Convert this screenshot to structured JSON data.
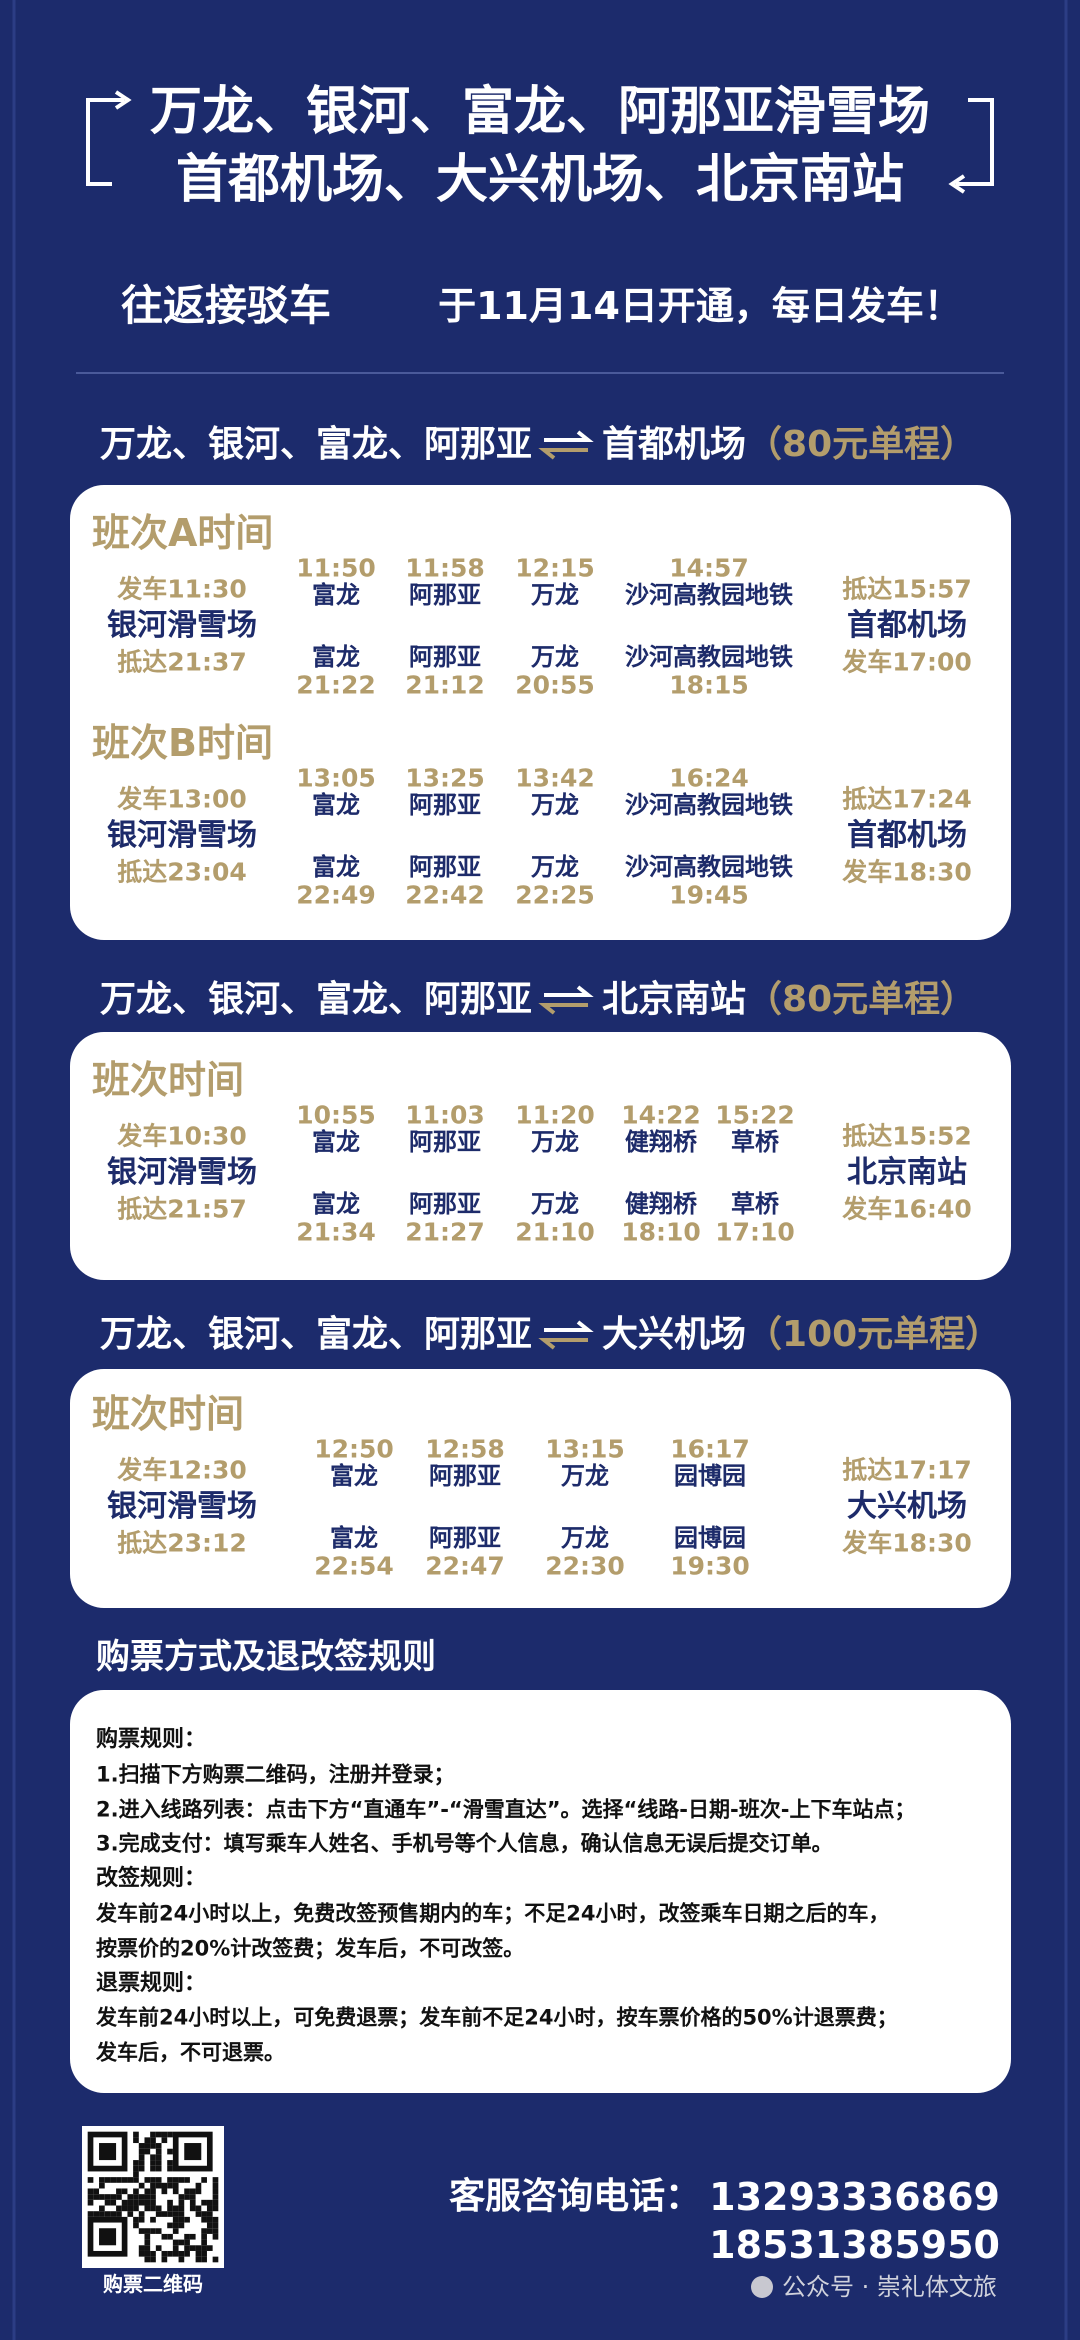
{
  "header": {
    "title_lines": [
      "万龙、银河、富龙、阿那亚滑雪场",
      "首都机场、大兴机场、北京南站"
    ],
    "subtitle": {
      "service": "往返接驳车",
      "launch": "于11月14日开通，每日发车！"
    }
  },
  "routes": [
    {
      "from": "万龙、银河、富龙、阿那亚",
      "to": "首都机场",
      "price": "（80元单程）",
      "schedules": [
        {
          "label": "班次A时间",
          "origin": {
            "depart": "发车11:30",
            "name": "银河滑雪场",
            "arrive": "抵达21:37"
          },
          "stops": [
            {
              "name": "富龙",
              "out": "11:50",
              "back": "21:22"
            },
            {
              "name": "阿那亚",
              "out": "11:58",
              "back": "21:12"
            },
            {
              "name": "万龙",
              "out": "12:15",
              "back": "20:55"
            },
            {
              "name": "沙河高教园地铁",
              "out": "14:57",
              "back": "18:15"
            }
          ],
          "destination": {
            "arrive": "抵达15:57",
            "name": "首都机场",
            "depart": "发车17:00"
          }
        },
        {
          "label": "班次B时间",
          "origin": {
            "depart": "发车13:00",
            "name": "银河滑雪场",
            "arrive": "抵达23:04"
          },
          "stops": [
            {
              "name": "富龙",
              "out": "13:05",
              "back": "22:49"
            },
            {
              "name": "阿那亚",
              "out": "13:25",
              "back": "22:42"
            },
            {
              "name": "万龙",
              "out": "13:42",
              "back": "22:25"
            },
            {
              "name": "沙河高教园地铁",
              "out": "16:24",
              "back": "19:45"
            }
          ],
          "destination": {
            "arrive": "抵达17:24",
            "name": "首都机场",
            "depart": "发车18:30"
          }
        }
      ]
    },
    {
      "from": "万龙、银河、富龙、阿那亚",
      "to": "北京南站",
      "price": "（80元单程）",
      "schedules": [
        {
          "label": "班次时间",
          "origin": {
            "depart": "发车10:30",
            "name": "银河滑雪场",
            "arrive": "抵达21:57"
          },
          "stops": [
            {
              "name": "富龙",
              "out": "10:55",
              "back": "21:34"
            },
            {
              "name": "阿那亚",
              "out": "11:03",
              "back": "21:27"
            },
            {
              "name": "万龙",
              "out": "11:20",
              "back": "21:10"
            },
            {
              "name": "健翔桥",
              "out": "14:22",
              "back": "18:10"
            },
            {
              "name": "草桥",
              "out": "15:22",
              "back": "17:10"
            }
          ],
          "destination": {
            "arrive": "抵达15:52",
            "name": "北京南站",
            "depart": "发车16:40"
          }
        }
      ]
    },
    {
      "from": "万龙、银河、富龙、阿那亚",
      "to": "大兴机场",
      "price": "（100元单程）",
      "schedules": [
        {
          "label": "班次时间",
          "origin": {
            "depart": "发车12:30",
            "name": "银河滑雪场",
            "arrive": "抵达23:12"
          },
          "stops": [
            {
              "name": "富龙",
              "out": "12:50",
              "back": "22:54"
            },
            {
              "name": "阿那亚",
              "out": "12:58",
              "back": "22:47"
            },
            {
              "name": "万龙",
              "out": "13:15",
              "back": "22:30"
            },
            {
              "name": "园博园",
              "out": "16:17",
              "back": "19:30"
            }
          ],
          "destination": {
            "arrive": "抵达17:17",
            "name": "大兴机场",
            "depart": "发车18:30"
          }
        }
      ]
    }
  ],
  "rules": {
    "title": "购票方式及退改签规则",
    "sections": [
      {
        "title": "购票规则：",
        "lines": [
          "1.扫描下方购票二维码，注册并登录；",
          "2.进入线路列表：点击下方“直通车”-“滑雪直达”。选择“线路-日期-班次-上下车站点；",
          "3.完成支付：填写乘车人姓名、手机号等个人信息，确认信息无误后提交订单。"
        ]
      },
      {
        "title": "改签规则：",
        "lines": [
          "发车前24小时以上，免费改签预售期内的车；不足24小时，改签乘车日期之后的车，",
          "按票价的20%计改签费；发车后，不可改签。"
        ]
      },
      {
        "title": "退票规则：",
        "lines": [
          "发车前24小时以上，可免费退票；发车前不足24小时，按车票价格的50%计退票费；",
          "发车后，不可退票。"
        ]
      }
    ]
  },
  "footer": {
    "qr_label": "购票二维码",
    "hotline_label": "客服咨询电话：",
    "phones": [
      "13293336869",
      "18531385950"
    ],
    "watermark": "公众号 · 崇礼体文旅"
  }
}
